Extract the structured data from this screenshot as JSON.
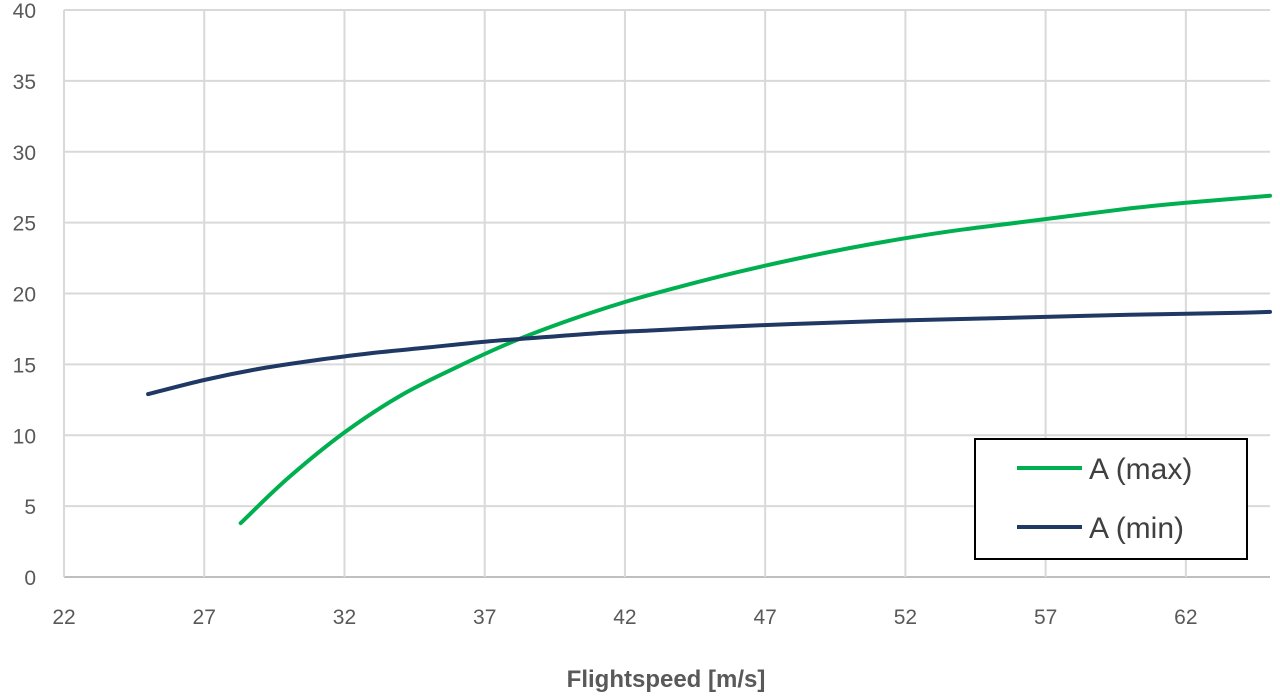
{
  "chart_data": {
    "type": "line",
    "title": "",
    "xlabel": "Flightspeed [m/s]",
    "ylabel": "",
    "xlim": [
      22,
      65
    ],
    "ylim": [
      0,
      40
    ],
    "x_ticks": [
      22,
      27,
      32,
      37,
      42,
      47,
      52,
      57,
      62
    ],
    "y_ticks": [
      0,
      5,
      10,
      15,
      20,
      25,
      30,
      35,
      40
    ],
    "grid": true,
    "legend_position": "bottom-right",
    "series": [
      {
        "name": "A (max)",
        "color": "#00b050",
        "points": [
          [
            28.3,
            3.8
          ],
          [
            30,
            7.0
          ],
          [
            32,
            10.2
          ],
          [
            34,
            12.8
          ],
          [
            36,
            14.8
          ],
          [
            38,
            16.6
          ],
          [
            40,
            18.1
          ],
          [
            42,
            19.4
          ],
          [
            44,
            20.5
          ],
          [
            46,
            21.5
          ],
          [
            48,
            22.4
          ],
          [
            50,
            23.2
          ],
          [
            52,
            23.9
          ],
          [
            54,
            24.5
          ],
          [
            56,
            25.0
          ],
          [
            58,
            25.5
          ],
          [
            60,
            26.0
          ],
          [
            62,
            26.4
          ],
          [
            65,
            26.9
          ]
        ]
      },
      {
        "name": "A (min)",
        "color": "#1f3864",
        "points": [
          [
            25,
            12.9
          ],
          [
            27,
            13.9
          ],
          [
            29,
            14.7
          ],
          [
            31,
            15.3
          ],
          [
            33,
            15.8
          ],
          [
            35,
            16.2
          ],
          [
            37,
            16.6
          ],
          [
            39,
            16.9
          ],
          [
            41,
            17.2
          ],
          [
            43,
            17.4
          ],
          [
            45,
            17.6
          ],
          [
            48,
            17.85
          ],
          [
            51,
            18.05
          ],
          [
            54,
            18.2
          ],
          [
            57,
            18.35
          ],
          [
            60,
            18.5
          ],
          [
            63,
            18.6
          ],
          [
            65,
            18.7
          ]
        ]
      }
    ]
  }
}
